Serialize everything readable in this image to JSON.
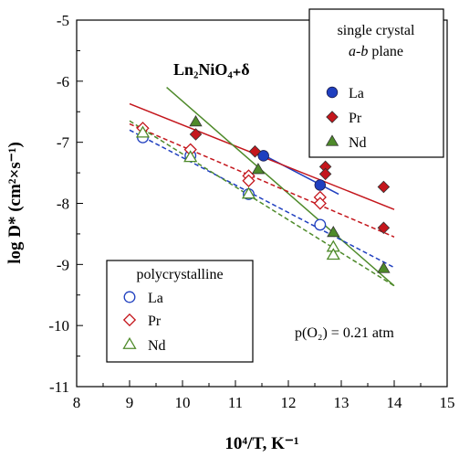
{
  "chart_data": {
    "type": "scatter",
    "title": "Ln₂NiO₄₊δ",
    "xlabel": "10⁴/T, K⁻¹",
    "ylabel": "log D* (cm²×s⁻¹)",
    "xlim": [
      8,
      15
    ],
    "ylim": [
      -11,
      -5
    ],
    "xticks": [
      "8",
      "9",
      "10",
      "11",
      "12",
      "13",
      "14",
      "15"
    ],
    "yticks": [
      "-11",
      "-10",
      "-9",
      "-8",
      "-7",
      "-6",
      "-5"
    ],
    "annotation": "p(O₂) = 0.21 atm",
    "legend_single": {
      "title_line1": "single crystal",
      "title_line2_italic": "a-b",
      "title_line2_rest": " plane",
      "entries": [
        "La",
        "Pr",
        "Nd"
      ]
    },
    "legend_poly": {
      "title": "polycrystalline",
      "entries": [
        "La",
        "Pr",
        "Nd"
      ]
    },
    "colors": {
      "La": "#1f3fbf",
      "Pr": "#c4161c",
      "Nd": "#4e8a2a"
    },
    "series": [
      {
        "name": "La",
        "group": "single crystal",
        "marker": "circle-filled",
        "color": "#1f3fbf",
        "points": [
          [
            11.53,
            -7.22
          ],
          [
            12.6,
            -7.7
          ]
        ],
        "fit": [
          [
            11.4,
            -7.15
          ],
          [
            12.95,
            -7.85
          ]
        ]
      },
      {
        "name": "Pr",
        "group": "single crystal",
        "marker": "diamond-filled",
        "color": "#c4161c",
        "points": [
          [
            10.25,
            -6.87
          ],
          [
            11.37,
            -7.15
          ],
          [
            12.7,
            -7.4
          ],
          [
            12.7,
            -7.52
          ],
          [
            13.8,
            -7.73
          ],
          [
            13.8,
            -8.4
          ]
        ],
        "fit": [
          [
            9.0,
            -6.37
          ],
          [
            14.0,
            -8.1
          ]
        ]
      },
      {
        "name": "Nd",
        "group": "single crystal",
        "marker": "triangle-filled",
        "color": "#4e8a2a",
        "points": [
          [
            10.25,
            -6.67
          ],
          [
            11.43,
            -7.45
          ],
          [
            12.85,
            -8.48
          ],
          [
            13.8,
            -9.07
          ]
        ],
        "fit": [
          [
            9.7,
            -6.1
          ],
          [
            14.0,
            -9.35
          ]
        ]
      },
      {
        "name": "La",
        "group": "polycrystalline",
        "marker": "circle-open",
        "color": "#1f3fbf",
        "points": [
          [
            9.25,
            -6.92
          ],
          [
            10.15,
            -7.22
          ],
          [
            11.25,
            -7.85
          ],
          [
            12.6,
            -8.35
          ]
        ],
        "fit": [
          [
            9.0,
            -6.8
          ],
          [
            14.0,
            -9.05
          ]
        ],
        "fit_style": "dashed"
      },
      {
        "name": "Pr",
        "group": "polycrystalline",
        "marker": "diamond-open",
        "color": "#c4161c",
        "points": [
          [
            9.25,
            -6.77
          ],
          [
            10.15,
            -7.12
          ],
          [
            11.25,
            -7.55
          ],
          [
            11.25,
            -7.63
          ],
          [
            12.6,
            -7.9
          ],
          [
            12.6,
            -8.0
          ]
        ],
        "fit": [
          [
            9.0,
            -6.7
          ],
          [
            14.0,
            -8.55
          ]
        ],
        "fit_style": "dashed"
      },
      {
        "name": "Nd",
        "group": "polycrystalline",
        "marker": "triangle-open",
        "color": "#4e8a2a",
        "points": [
          [
            9.25,
            -6.85
          ],
          [
            10.15,
            -7.25
          ],
          [
            11.25,
            -7.85
          ],
          [
            12.85,
            -8.72
          ],
          [
            12.85,
            -8.85
          ]
        ],
        "fit": [
          [
            9.0,
            -6.65
          ],
          [
            14.0,
            -9.35
          ]
        ],
        "fit_style": "dashed"
      }
    ]
  }
}
